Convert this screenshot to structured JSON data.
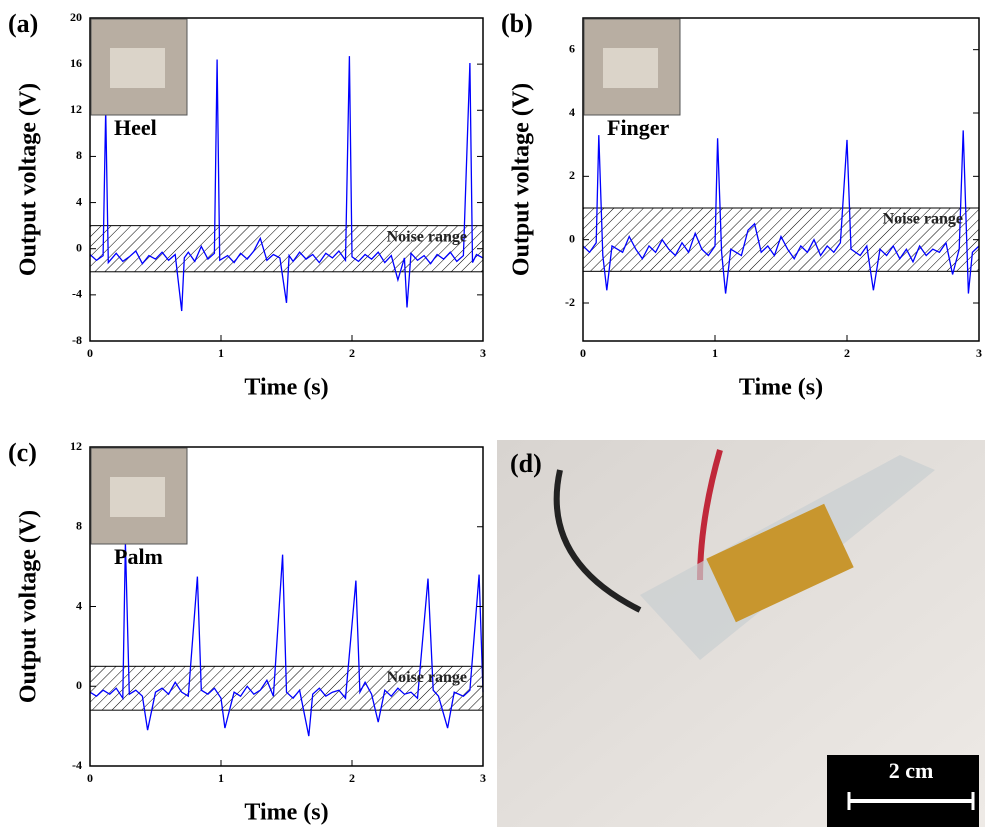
{
  "chart_data": [
    {
      "type": "line",
      "panel_label": "(a)",
      "xlabel": "Time (s)",
      "ylabel": "Output voltage (V)",
      "color": "#0000ff",
      "xlim": [
        0,
        3
      ],
      "xticks": [
        0,
        1,
        2,
        3
      ],
      "ylim": [
        -8,
        20
      ],
      "yticks": [
        -8,
        -4,
        0,
        4,
        8,
        12,
        16,
        20
      ],
      "noise_band": [
        -2,
        2
      ],
      "noise_label": "Noise range",
      "inset_label": "Heel",
      "x": [
        0,
        0.05,
        0.1,
        0.12,
        0.14,
        0.2,
        0.25,
        0.3,
        0.35,
        0.4,
        0.45,
        0.5,
        0.55,
        0.6,
        0.65,
        0.7,
        0.72,
        0.75,
        0.8,
        0.85,
        0.9,
        0.95,
        0.97,
        0.99,
        1.05,
        1.1,
        1.15,
        1.2,
        1.25,
        1.3,
        1.35,
        1.4,
        1.45,
        1.5,
        1.52,
        1.55,
        1.6,
        1.65,
        1.7,
        1.75,
        1.8,
        1.85,
        1.9,
        1.95,
        1.98,
        2.0,
        2.05,
        2.1,
        2.15,
        2.2,
        2.25,
        2.3,
        2.35,
        2.4,
        2.42,
        2.45,
        2.5,
        2.55,
        2.6,
        2.65,
        2.7,
        2.75,
        2.8,
        2.85,
        2.9,
        2.92,
        2.95,
        3.0
      ],
      "values": [
        -0.5,
        -1.0,
        -0.6,
        12,
        -1.2,
        -0.4,
        -1.1,
        -0.7,
        -0.2,
        -1.3,
        -0.6,
        -0.9,
        -0.3,
        -1.0,
        -0.5,
        -5.4,
        -0.8,
        -0.3,
        -1.1,
        0.2,
        -0.9,
        -0.4,
        16.4,
        -1.0,
        -0.6,
        -1.2,
        -0.4,
        -0.9,
        -0.2,
        0.9,
        -1.0,
        -0.5,
        -0.8,
        -4.7,
        -0.6,
        -1.1,
        -0.3,
        -0.9,
        -0.5,
        -1.2,
        -0.4,
        -0.8,
        -0.2,
        -1.0,
        16.7,
        -0.7,
        -1.1,
        -0.5,
        -0.9,
        -0.3,
        -1.2,
        -0.6,
        -2.7,
        -0.8,
        -5.1,
        -0.4,
        -1.0,
        -0.6,
        -1.3,
        -0.5,
        -0.9,
        -0.3,
        -1.1,
        -0.6,
        16.1,
        -1.2,
        -0.5,
        -0.8
      ]
    },
    {
      "type": "line",
      "panel_label": "(b)",
      "xlabel": "Time (s)",
      "ylabel": "Output voltage (V)",
      "color": "#0000ff",
      "xlim": [
        0,
        3
      ],
      "xticks": [
        0,
        1,
        2,
        3
      ],
      "ylim": [
        -3.2,
        7
      ],
      "yticks": [
        -2,
        0,
        2,
        4,
        6
      ],
      "noise_band": [
        -1,
        1
      ],
      "noise_label": "Noise range",
      "inset_label": "Finger",
      "x": [
        0,
        0.05,
        0.1,
        0.12,
        0.15,
        0.18,
        0.22,
        0.3,
        0.35,
        0.4,
        0.45,
        0.5,
        0.55,
        0.6,
        0.65,
        0.7,
        0.75,
        0.8,
        0.85,
        0.9,
        0.95,
        1.0,
        1.02,
        1.05,
        1.08,
        1.12,
        1.2,
        1.25,
        1.3,
        1.35,
        1.4,
        1.45,
        1.5,
        1.55,
        1.6,
        1.65,
        1.7,
        1.75,
        1.8,
        1.85,
        1.9,
        1.95,
        2.0,
        2.03,
        2.1,
        2.15,
        2.2,
        2.25,
        2.3,
        2.35,
        2.4,
        2.45,
        2.5,
        2.55,
        2.6,
        2.65,
        2.7,
        2.75,
        2.8,
        2.85,
        2.88,
        2.92,
        2.95,
        3.0
      ],
      "values": [
        -0.2,
        -0.4,
        -0.1,
        3.3,
        -0.5,
        -1.6,
        -0.2,
        -0.4,
        0.1,
        -0.3,
        -0.6,
        -0.2,
        -0.4,
        0.0,
        -0.3,
        -0.5,
        -0.1,
        -0.4,
        0.2,
        -0.3,
        -0.5,
        -0.2,
        3.2,
        -0.4,
        -1.7,
        -0.3,
        -0.5,
        0.3,
        0.5,
        -0.4,
        -0.2,
        -0.5,
        0.1,
        -0.3,
        -0.6,
        -0.2,
        -0.4,
        0.0,
        -0.5,
        -0.2,
        -0.4,
        -0.1,
        3.15,
        -0.3,
        -0.5,
        -0.2,
        -1.6,
        -0.3,
        -0.5,
        -0.2,
        -0.6,
        -0.3,
        -0.7,
        -0.2,
        -0.5,
        -0.3,
        -0.4,
        -0.1,
        -1.1,
        -0.3,
        3.45,
        -1.7,
        -0.4,
        -0.2
      ]
    },
    {
      "type": "line",
      "panel_label": "(c)",
      "xlabel": "Time (s)",
      "ylabel": "Output voltage (V)",
      "color": "#0000ff",
      "xlim": [
        0,
        3
      ],
      "xticks": [
        0,
        1,
        2,
        3
      ],
      "ylim": [
        -4,
        12
      ],
      "yticks": [
        -4,
        0,
        4,
        8,
        12
      ],
      "noise_band": [
        -1.2,
        1
      ],
      "noise_label": "Noise range",
      "inset_label": "Palm",
      "x": [
        0,
        0.05,
        0.1,
        0.15,
        0.2,
        0.25,
        0.27,
        0.3,
        0.35,
        0.4,
        0.44,
        0.5,
        0.55,
        0.6,
        0.65,
        0.7,
        0.75,
        0.82,
        0.85,
        0.9,
        0.95,
        1.0,
        1.03,
        1.1,
        1.15,
        1.2,
        1.25,
        1.3,
        1.35,
        1.4,
        1.47,
        1.5,
        1.55,
        1.6,
        1.67,
        1.7,
        1.75,
        1.8,
        1.85,
        1.9,
        1.95,
        2.03,
        2.06,
        2.1,
        2.15,
        2.2,
        2.25,
        2.3,
        2.35,
        2.4,
        2.45,
        2.5,
        2.58,
        2.62,
        2.66,
        2.73,
        2.78,
        2.85,
        2.9,
        2.97,
        3.0
      ],
      "values": [
        -0.3,
        -0.5,
        -0.2,
        -0.4,
        -0.1,
        -0.6,
        7.2,
        -0.4,
        -0.2,
        -0.5,
        -2.2,
        -0.3,
        -0.1,
        -0.4,
        0.2,
        -0.3,
        -0.5,
        5.5,
        -0.2,
        -0.4,
        -0.1,
        -0.6,
        -2.1,
        -0.3,
        -0.5,
        0.0,
        -0.4,
        -0.2,
        0.3,
        -0.5,
        6.6,
        -0.3,
        -0.6,
        -0.2,
        -2.5,
        -0.4,
        -0.1,
        -0.5,
        -0.3,
        -0.2,
        -0.6,
        5.3,
        -0.3,
        0.2,
        -0.4,
        -1.8,
        -0.2,
        -0.5,
        -0.1,
        -0.4,
        -0.3,
        -0.6,
        5.4,
        -0.2,
        -0.5,
        -2.1,
        -0.3,
        -0.5,
        -0.2,
        5.6,
        -0.3
      ]
    }
  ],
  "photo": {
    "panel_label": "(d)",
    "scale_bar": "2 cm"
  }
}
